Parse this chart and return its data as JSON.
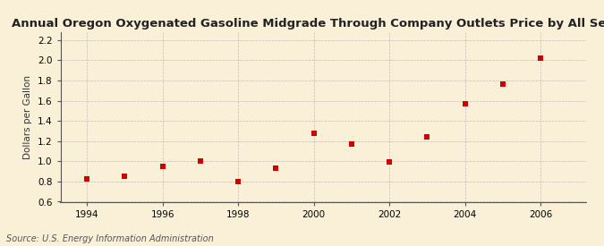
{
  "title": "Annual Oregon Oxygenated Gasoline Midgrade Through Company Outlets Price by All Sellers",
  "ylabel": "Dollars per Gallon",
  "source": "Source: U.S. Energy Information Administration",
  "years": [
    1994,
    1995,
    1996,
    1997,
    1998,
    1999,
    2000,
    2001,
    2002,
    2003,
    2004,
    2005,
    2006
  ],
  "values": [
    0.83,
    0.85,
    0.95,
    1.0,
    0.8,
    0.93,
    1.28,
    1.17,
    0.99,
    1.24,
    1.57,
    1.76,
    2.02
  ],
  "xlim": [
    1993.3,
    2007.2
  ],
  "ylim": [
    0.6,
    2.28
  ],
  "yticks": [
    0.6,
    0.8,
    1.0,
    1.2,
    1.4,
    1.6,
    1.8,
    2.0,
    2.2
  ],
  "xticks": [
    1994,
    1996,
    1998,
    2000,
    2002,
    2004,
    2006
  ],
  "marker_color": "#cc0000",
  "marker_size": 4,
  "background_color": "#faf0d8",
  "grid_color": "#aaaaaa",
  "title_fontsize": 9.5,
  "label_fontsize": 7.5,
  "tick_fontsize": 7.5,
  "source_fontsize": 7
}
